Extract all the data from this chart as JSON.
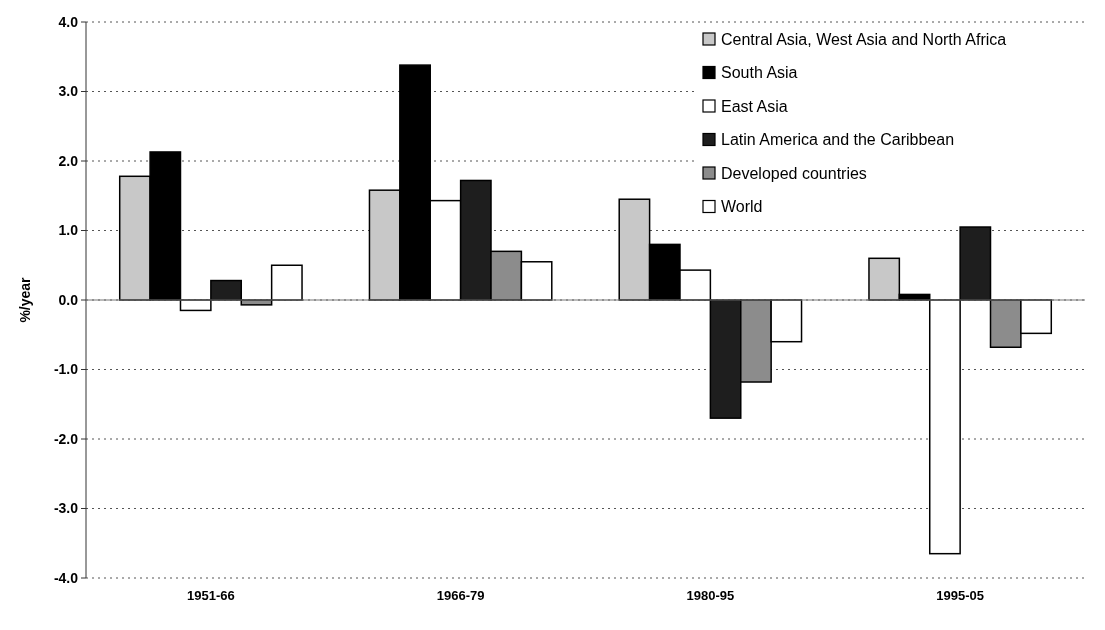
{
  "chart_data": {
    "type": "bar",
    "ylabel": "%/year",
    "categories": [
      "1951-66",
      "1966-79",
      "1980-95",
      "1995-05"
    ],
    "series": [
      {
        "name": "Central Asia, West Asia and North Africa",
        "color": "#c8c8c8",
        "values": [
          1.78,
          1.58,
          1.45,
          0.6
        ]
      },
      {
        "name": "South Asia",
        "color": "#000000",
        "values": [
          2.13,
          3.38,
          0.8,
          0.08
        ]
      },
      {
        "name": "East Asia",
        "color": "#ffffff",
        "values": [
          -0.15,
          1.43,
          0.43,
          -3.65
        ]
      },
      {
        "name": "Latin America and the Caribbean",
        "color": "#1e1e1e",
        "values": [
          0.28,
          1.72,
          -1.7,
          1.05
        ]
      },
      {
        "name": "Developed countries",
        "color": "#8c8c8c",
        "values": [
          -0.07,
          0.7,
          -1.18,
          -0.68
        ]
      },
      {
        "name": "World",
        "color": "#ffffff",
        "values": [
          0.5,
          0.55,
          -0.6,
          -0.48
        ]
      }
    ],
    "ylim": [
      -4,
      4
    ],
    "yticks": [
      {
        "value": -4,
        "label": "-4.0"
      },
      {
        "value": -3,
        "label": "-3.0"
      },
      {
        "value": -2,
        "label": "-2.0"
      },
      {
        "value": -1,
        "label": "-1.0"
      },
      {
        "value": 0,
        "label": "0.0"
      },
      {
        "value": 1,
        "label": "1.0"
      },
      {
        "value": 2,
        "label": "2.0"
      },
      {
        "value": 3,
        "label": "3.0"
      },
      {
        "value": 4,
        "label": "4.0"
      }
    ],
    "grid": "y",
    "legend": "top right"
  }
}
